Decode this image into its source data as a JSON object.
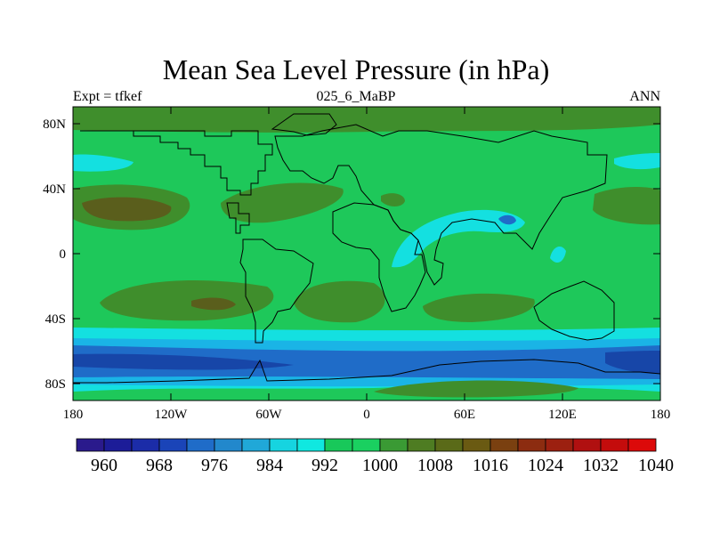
{
  "title": "Mean Sea Level Pressure (in hPa)",
  "subtitle_left": "Expt = tfkef",
  "subtitle_center": "025_6_MaBP",
  "subtitle_right": "ANN",
  "y_ticks": [
    "80N",
    "40N",
    "0",
    "40S",
    "80S"
  ],
  "x_ticks": [
    "180",
    "120W",
    "60W",
    "0",
    "60E",
    "120E",
    "180"
  ],
  "colorbar_labels": [
    "960",
    "968",
    "976",
    "984",
    "992",
    "1000",
    "1008",
    "1016",
    "1024",
    "1032",
    "1040"
  ],
  "colorbar_colors": [
    "#2a1a8c",
    "#1c1c98",
    "#1b2ca8",
    "#1a44b8",
    "#1f6cc8",
    "#2288cc",
    "#20a8d8",
    "#16d4e0",
    "#10e8e0",
    "#18c85a",
    "#1ad060",
    "#3a9a34",
    "#4e7c22",
    "#5a6a18",
    "#6a5a12",
    "#7a4010",
    "#8c2c10",
    "#9c2010",
    "#b01010",
    "#c40c0c",
    "#dc0a0a"
  ],
  "colors": {
    "ocean_green": "#1ec85a",
    "high_light": "#3f8e2c",
    "high_dark": "#5a5e1c",
    "low_cyan": "#14e0e0",
    "low_lightblue": "#1ab4e6",
    "low_blue": "#1f6cc8",
    "low_darkblue": "#1746a8"
  }
}
